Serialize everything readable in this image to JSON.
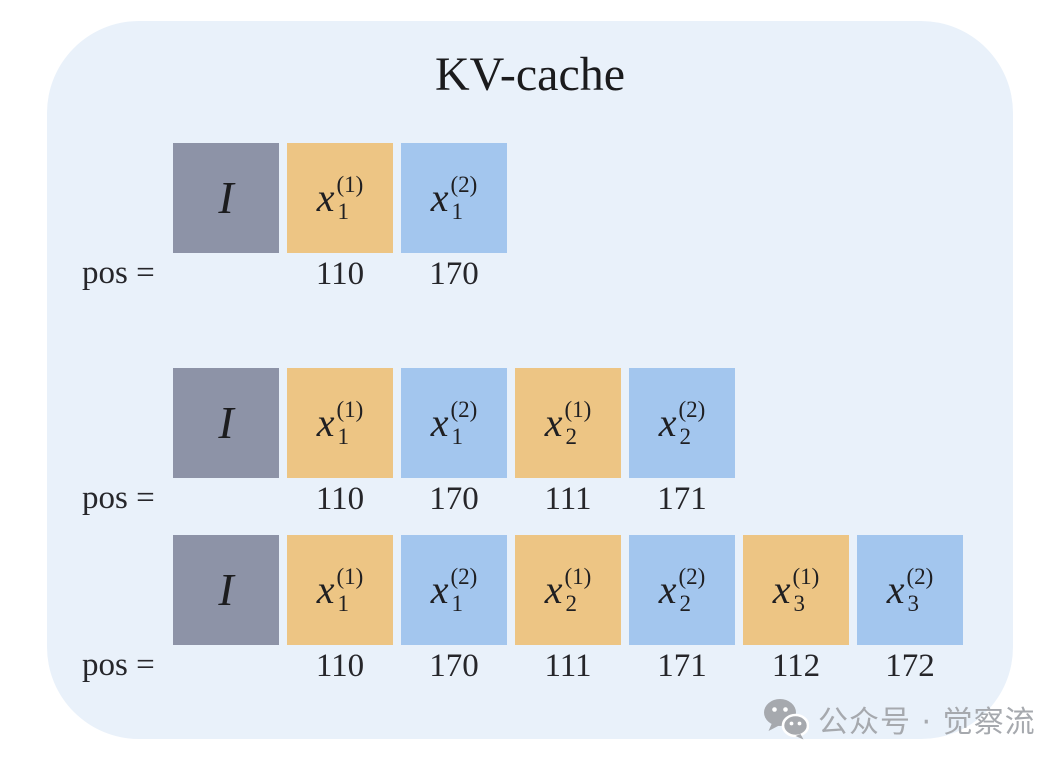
{
  "title": "KV-cache",
  "pos_label": "pos =",
  "colors": {
    "panel_bg": "#e9f1fa",
    "identity_fill": "#8d93a7",
    "variant1_fill": "#edc584",
    "variant2_fill": "#a3c6ee",
    "text": "#1f1f22",
    "watermark": "#a6a9ae"
  },
  "rows": [
    {
      "cells": [
        {
          "kind": "identity",
          "label": "I",
          "pos": ""
        },
        {
          "kind": "token",
          "variant": 1,
          "base": "x",
          "sub": "1",
          "sup": "(1)",
          "pos": "110"
        },
        {
          "kind": "token",
          "variant": 2,
          "base": "x",
          "sub": "1",
          "sup": "(2)",
          "pos": "170"
        }
      ]
    },
    {
      "cells": [
        {
          "kind": "identity",
          "label": "I",
          "pos": ""
        },
        {
          "kind": "token",
          "variant": 1,
          "base": "x",
          "sub": "1",
          "sup": "(1)",
          "pos": "110"
        },
        {
          "kind": "token",
          "variant": 2,
          "base": "x",
          "sub": "1",
          "sup": "(2)",
          "pos": "170"
        },
        {
          "kind": "token",
          "variant": 1,
          "base": "x",
          "sub": "2",
          "sup": "(1)",
          "pos": "111"
        },
        {
          "kind": "token",
          "variant": 2,
          "base": "x",
          "sub": "2",
          "sup": "(2)",
          "pos": "171"
        }
      ]
    },
    {
      "cells": [
        {
          "kind": "identity",
          "label": "I",
          "pos": ""
        },
        {
          "kind": "token",
          "variant": 1,
          "base": "x",
          "sub": "1",
          "sup": "(1)",
          "pos": "110"
        },
        {
          "kind": "token",
          "variant": 2,
          "base": "x",
          "sub": "1",
          "sup": "(2)",
          "pos": "170"
        },
        {
          "kind": "token",
          "variant": 1,
          "base": "x",
          "sub": "2",
          "sup": "(1)",
          "pos": "111"
        },
        {
          "kind": "token",
          "variant": 2,
          "base": "x",
          "sub": "2",
          "sup": "(2)",
          "pos": "171"
        },
        {
          "kind": "token",
          "variant": 1,
          "base": "x",
          "sub": "3",
          "sup": "(1)",
          "pos": "112"
        },
        {
          "kind": "token",
          "variant": 2,
          "base": "x",
          "sub": "3",
          "sup": "(2)",
          "pos": "172"
        }
      ]
    }
  ],
  "watermark": {
    "icon": "wechat-icon",
    "text": "公众号 · 觉察流"
  }
}
